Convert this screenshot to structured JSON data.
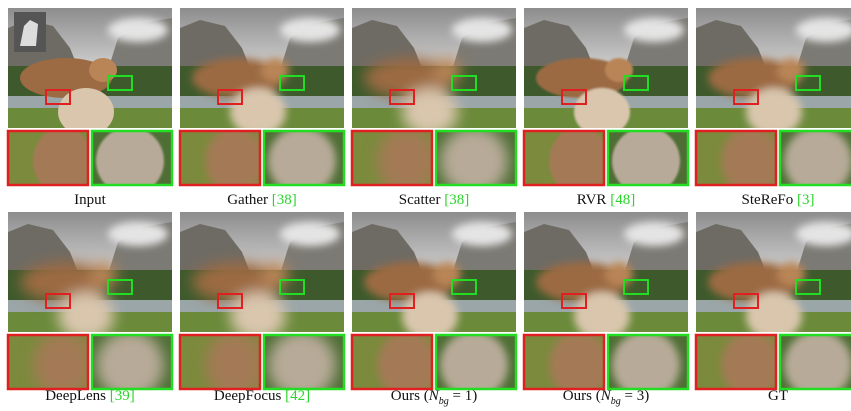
{
  "panels": [
    {
      "label": "Input"
    },
    {
      "label": "Gather ",
      "ref": "[38]"
    },
    {
      "label": "Scatter ",
      "ref": "[38]"
    },
    {
      "label": "RVR ",
      "ref": "[48]"
    },
    {
      "label": "SteReFo ",
      "ref": "[3]"
    },
    {
      "label": "DeepLens ",
      "ref": "[39]"
    },
    {
      "label": "DeepFocus ",
      "ref": "[42]"
    },
    {
      "label": "Ours (",
      "var": "N",
      "sub": "bg",
      "rest": " = 1)"
    },
    {
      "label": "Ours (",
      "var": "N",
      "sub": "bg",
      "rest": " = 3)"
    },
    {
      "label": "GT"
    }
  ]
}
